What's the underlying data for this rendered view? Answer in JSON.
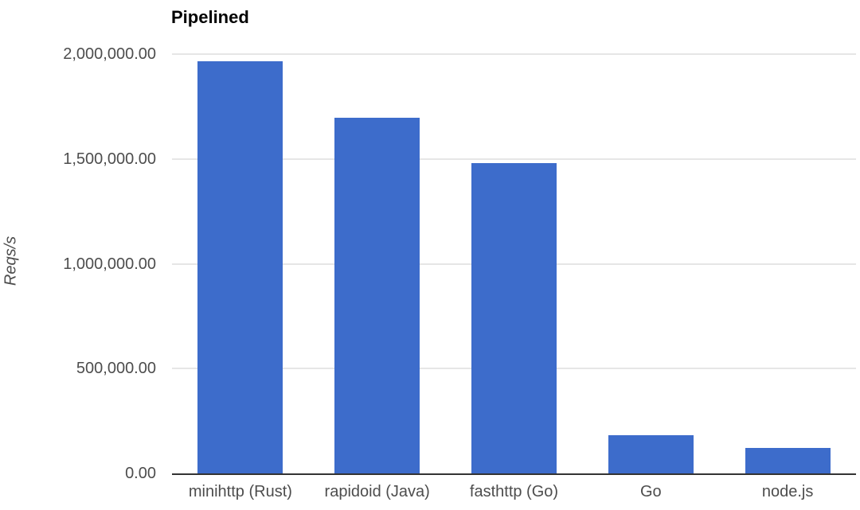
{
  "chart_data": {
    "type": "bar",
    "title": "Pipelined",
    "ylabel": "Reqs/s",
    "xlabel": "",
    "categories": [
      "minihttp (Rust)",
      "rapidoid (Java)",
      "fasthttp (Go)",
      "Go",
      "node.js"
    ],
    "values": [
      1967000,
      1695000,
      1480000,
      184000,
      123000
    ],
    "ylim": [
      0,
      2000000
    ],
    "yticks": [
      0,
      500000,
      1000000,
      1500000,
      2000000
    ],
    "ytick_labels": [
      "0.00",
      "500,000.00",
      "1,000,000.00",
      "1,500,000.00",
      "2,000,000.00"
    ],
    "grid": true,
    "legend": "none",
    "colors": {
      "bar": "#3D6CCB",
      "gridline": "#E6E6E6",
      "axis_line": "#333333",
      "tick_label": "#4D4D4D",
      "title": "#000000"
    }
  }
}
